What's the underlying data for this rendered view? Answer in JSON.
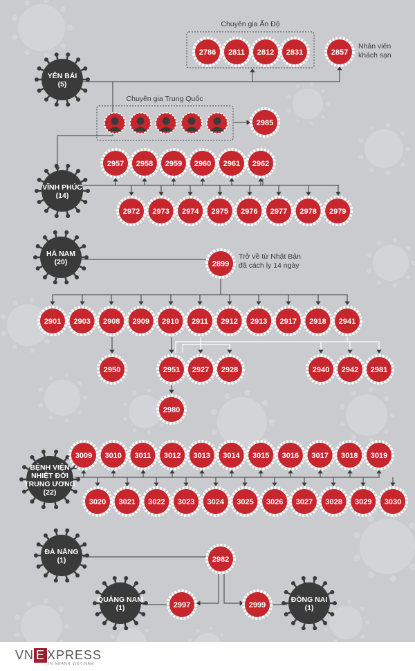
{
  "colors": {
    "case_fill": "#c8262d",
    "case_ring": "#ffffff",
    "province_fill": "#3a3a3b",
    "line": "#3a3a3a",
    "person": "#3a3a3b",
    "background": "#c9cbcf"
  },
  "groups": {
    "india": {
      "label": "Chuyên gia Ấn Độ"
    },
    "china": {
      "label": "Chuyên gia Trung Quốc"
    }
  },
  "notes": {
    "hotel": [
      "Nhân viên",
      "khách sạn"
    ],
    "japan": [
      "Trở về từ Nhật Bản",
      "đã cách ly 14 ngày"
    ]
  },
  "provinces": [
    {
      "id": "yb",
      "lines": [
        "YÊN BÁI",
        "(5)"
      ]
    },
    {
      "id": "vp",
      "lines": [
        "VĨNH PHÚC",
        "(14)"
      ]
    },
    {
      "id": "hn",
      "lines": [
        "HÀ NAM",
        "(20)"
      ]
    },
    {
      "id": "bv",
      "lines": [
        "BỆNH VIỆN",
        "NHIỆT ĐỚI",
        "TRUNG ƯƠNG",
        "(22)"
      ]
    },
    {
      "id": "dn",
      "lines": [
        "ĐÀ NẴNG",
        "(1)"
      ]
    },
    {
      "id": "qn",
      "lines": [
        "QUẢNG NAM",
        "(1)"
      ]
    },
    {
      "id": "dnai",
      "lines": [
        "ĐỒNG NAI",
        "(1)"
      ]
    }
  ],
  "cases": [
    "2786",
    "2811",
    "2812",
    "2831",
    "2857",
    "2985",
    "2957",
    "2958",
    "2959",
    "2960",
    "2961",
    "2962",
    "2972",
    "2973",
    "2974",
    "2975",
    "2976",
    "2977",
    "2978",
    "2979",
    "2899",
    "2901",
    "2903",
    "2908",
    "2909",
    "2910",
    "2911",
    "2912",
    "2913",
    "2917",
    "2918",
    "2941",
    "2950",
    "2951",
    "2927",
    "2928",
    "2940",
    "2942",
    "2981",
    "2980",
    "3009",
    "3010",
    "3011",
    "3012",
    "3013",
    "3014",
    "3015",
    "3016",
    "3017",
    "3018",
    "3019",
    "3020",
    "3021",
    "3022",
    "3023",
    "3024",
    "3025",
    "3026",
    "3027",
    "3028",
    "3029",
    "3030",
    "2982",
    "2997",
    "2999"
  ],
  "footer": {
    "brand_pre": "VN",
    "brand_e": "E",
    "brand_post": "XPRESS",
    "tagline": "TIN NHANH VIỆT NAM"
  }
}
